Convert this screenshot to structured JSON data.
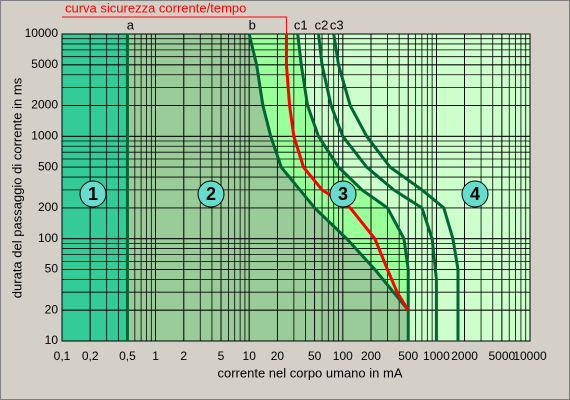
{
  "chart_data": {
    "type": "line",
    "x_label": "corrente nel corpo umano in mA",
    "y_label": "durata del passaggio di corrente in ms",
    "xlog": true,
    "ylog": true,
    "grid": true,
    "minor_grid": true,
    "xlim": [
      0.1,
      10000
    ],
    "ylim": [
      10,
      10000
    ],
    "xticks": [
      {
        "value": 0.1,
        "label": "0,1"
      },
      {
        "value": 0.2,
        "label": "0,2"
      },
      {
        "value": 0.5,
        "label": "0,5"
      },
      1,
      2,
      5,
      10,
      20,
      50,
      100,
      200,
      500,
      1000,
      2000,
      5000,
      10000
    ],
    "yticks": [
      10,
      20,
      50,
      100,
      200,
      500,
      1000,
      2000,
      5000,
      10000
    ],
    "zones": [
      {
        "label": "1",
        "color": "#33cc99"
      },
      {
        "label": "2",
        "color": "#99cc99"
      },
      {
        "label": "3",
        "color": "#99ff99"
      },
      {
        "label": "4",
        "color": "#ccffcc"
      }
    ],
    "series": [
      {
        "name": "a",
        "color": "#006633",
        "x": [
          0.5,
          0.5
        ],
        "values": [
          10000,
          10
        ]
      },
      {
        "name": "b",
        "color": "#006633",
        "x": [
          10,
          12,
          14,
          17,
          22,
          50,
          110,
          220,
          500
        ],
        "values": [
          10000,
          5000,
          2000,
          1000,
          500,
          200,
          100,
          50,
          20
        ]
      },
      {
        "name": "c1",
        "color": "#006633",
        "x": [
          33,
          36,
          42,
          55,
          90,
          160,
          300,
          450,
          500,
          500
        ],
        "values": [
          10000,
          5000,
          2000,
          1000,
          500,
          300,
          200,
          100,
          50,
          10
        ]
      },
      {
        "name": "c2",
        "color": "#006633",
        "x": [
          55,
          60,
          75,
          100,
          180,
          350,
          700,
          900,
          1000,
          1000
        ],
        "values": [
          10000,
          5000,
          2000,
          1000,
          500,
          300,
          200,
          100,
          40,
          10
        ]
      },
      {
        "name": "c3",
        "color": "#006633",
        "x": [
          80,
          90,
          120,
          180,
          320,
          700,
          1200,
          1500,
          1700,
          1700
        ],
        "values": [
          10000,
          5000,
          2000,
          1000,
          500,
          300,
          200,
          100,
          50,
          10
        ]
      },
      {
        "name": "curva sicurezza corrente/tempo",
        "color": "#ff0000",
        "x": [
          25,
          25,
          27,
          30,
          38,
          60,
          120,
          220,
          300,
          380,
          500
        ],
        "values": [
          10000,
          5000,
          2000,
          1000,
          500,
          300,
          200,
          100,
          50,
          30,
          20
        ]
      }
    ]
  }
}
